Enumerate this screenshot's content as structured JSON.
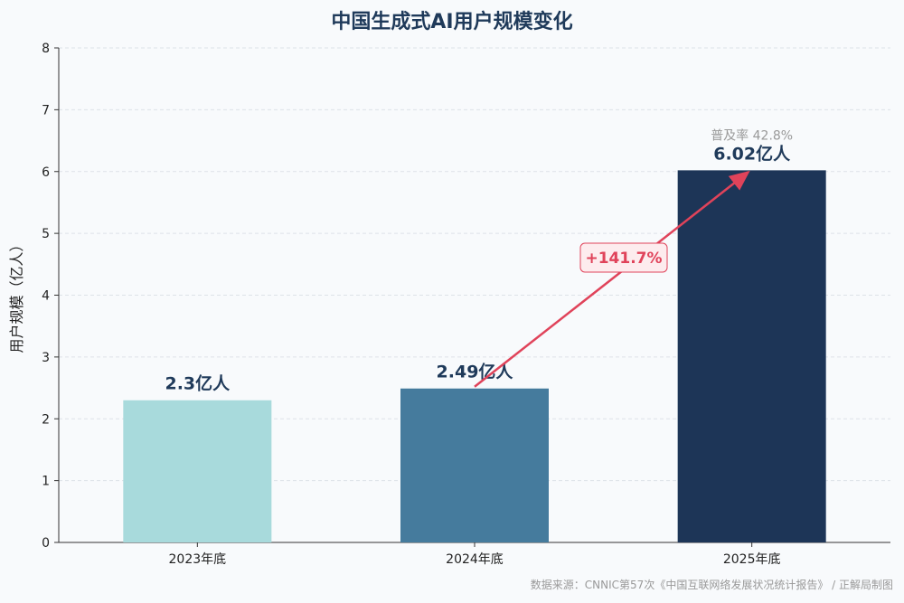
{
  "chart_data": {
    "type": "bar",
    "title": "中国生成式AI用户规模变化",
    "xlabel": "",
    "ylabel": "用户规模（亿人）",
    "ylim": [
      0,
      8
    ],
    "yticks": [
      "0",
      "1",
      "2",
      "3",
      "4",
      "5",
      "6",
      "7",
      "8"
    ],
    "grid": true,
    "categories": [
      "2023年底",
      "2024年底",
      "2025年底"
    ],
    "values": [
      2.3,
      2.49,
      6.02
    ],
    "data_labels": [
      "2.3亿人",
      "2.49亿人",
      "6.02亿人"
    ],
    "colors": [
      "#a8dadc",
      "#457b9d",
      "#1d3557"
    ],
    "annotations": {
      "penetration": "普及率 42.8%",
      "growth": "+141.7%",
      "growth_color": "#e0435a"
    },
    "source": "数据来源：CNNIC第57次《中国互联网络发展状况统计报告》 / 正解局制图"
  }
}
